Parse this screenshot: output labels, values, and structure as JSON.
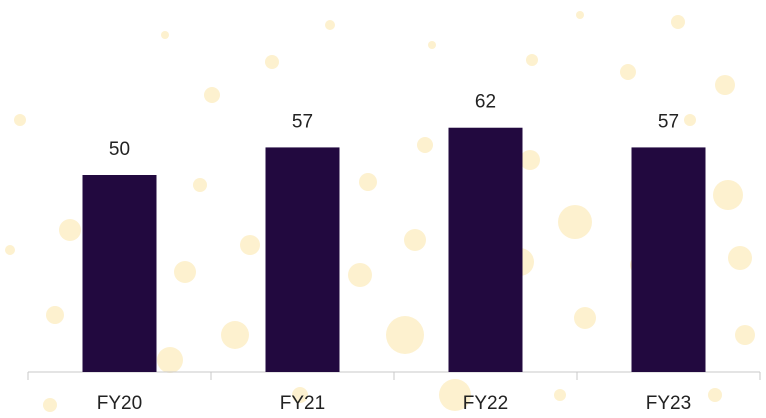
{
  "chart_data": {
    "type": "bar",
    "categories": [
      "FY20",
      "FY21",
      "FY22",
      "FY23"
    ],
    "values": [
      50,
      57,
      62,
      57
    ],
    "color": "#22093f",
    "grid": false
  }
}
